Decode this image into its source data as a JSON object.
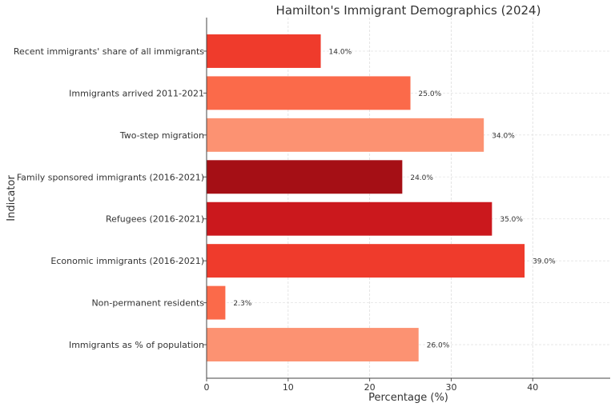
{
  "chart_data": {
    "type": "bar",
    "orientation": "horizontal",
    "title": "Hamilton's Immigrant Demographics (2024)",
    "xlabel": "Percentage (%)",
    "ylabel": "Indicator",
    "xlim": [
      0,
      49.5
    ],
    "xticks": [
      0,
      10,
      20,
      30,
      40
    ],
    "grid": true,
    "categories": [
      "Immigrants as % of population",
      "Non-permanent residents",
      "Economic immigrants (2016-2021)",
      "Refugees (2016-2021)",
      "Family sponsored immigrants (2016-2021)",
      "Two-step migration",
      "Immigrants arrived 2011-2021",
      "Recent immigrants' share of all immigrants"
    ],
    "values": [
      26.0,
      2.3,
      39.0,
      35.0,
      24.0,
      34.0,
      25.0,
      14.0
    ],
    "data_labels": [
      "26.0%",
      "2.3%",
      "39.0%",
      "35.0%",
      "24.0%",
      "34.0%",
      "25.0%",
      "14.0%"
    ],
    "colors": [
      "#fc9272",
      "#fb6a4a",
      "#ef3b2c",
      "#cb181d",
      "#a50f15",
      "#fc9272",
      "#fb6a4a",
      "#ef3b2c"
    ]
  }
}
